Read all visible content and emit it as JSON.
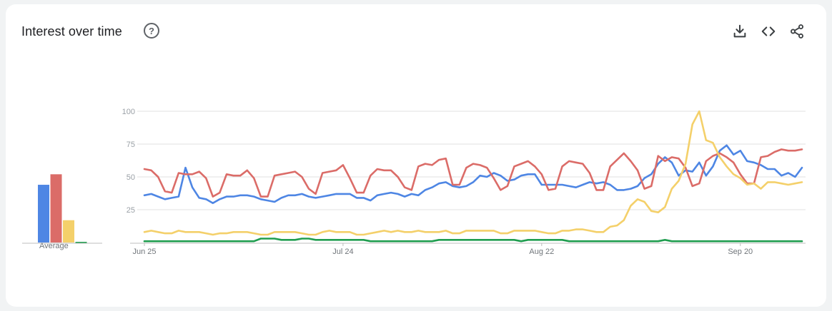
{
  "header": {
    "title": "Interest over time",
    "help_icon": "?"
  },
  "toolbar": {
    "icons": [
      "download-icon",
      "embed-code-icon",
      "share-icon"
    ]
  },
  "average": {
    "label": "Average"
  },
  "colors": {
    "blue": "#4e86e4",
    "red": "#db6c68",
    "yellow": "#f4d06a",
    "green": "#1f9d4f",
    "grid": "#e0e0e0",
    "axis": "#bdbdbd"
  },
  "chart_data": {
    "type": "line",
    "ylim": [
      0,
      100
    ],
    "y_ticks": [
      100,
      75,
      50,
      25
    ],
    "x_tick_labels": [
      "Jun 25",
      "Jul 24",
      "Aug 22",
      "Sep 20"
    ],
    "x_tick_index": [
      0,
      29,
      58,
      87
    ],
    "legend": "none",
    "grid": true,
    "average_bars": [
      44,
      52,
      17,
      0.5
    ],
    "series": [
      {
        "color": "#4e86e4",
        "values": [
          36,
          37,
          35,
          33,
          34,
          35,
          57,
          42,
          34,
          33,
          30,
          33,
          35,
          35,
          36,
          36,
          35,
          33,
          32,
          31,
          34,
          36,
          36,
          37,
          35,
          34,
          35,
          36,
          37,
          37,
          37,
          34,
          34,
          32,
          36,
          37,
          38,
          37,
          35,
          37,
          36,
          40,
          42,
          45,
          46,
          43,
          42,
          43,
          46,
          51,
          50,
          53,
          51,
          47,
          48,
          51,
          52,
          52,
          44,
          44,
          44,
          44,
          43,
          42,
          44,
          46,
          45,
          46,
          44,
          40,
          40,
          41,
          43,
          49,
          52,
          60,
          65,
          61,
          51,
          55,
          54,
          61,
          51,
          58,
          70,
          74,
          67,
          70,
          62,
          61,
          59,
          56,
          56,
          51,
          53,
          50,
          57
        ]
      },
      {
        "color": "#db6c68",
        "values": [
          56,
          55,
          50,
          39,
          38,
          53,
          52,
          52,
          54,
          49,
          35,
          38,
          52,
          51,
          51,
          55,
          49,
          35,
          35,
          51,
          52,
          53,
          54,
          50,
          41,
          37,
          53,
          54,
          55,
          59,
          49,
          38,
          38,
          51,
          56,
          55,
          55,
          50,
          42,
          40,
          58,
          60,
          59,
          63,
          64,
          44,
          44,
          57,
          60,
          59,
          57,
          49,
          40,
          43,
          58,
          60,
          62,
          58,
          52,
          40,
          41,
          58,
          62,
          61,
          60,
          53,
          40,
          40,
          58,
          63,
          68,
          62,
          55,
          41,
          43,
          66,
          62,
          65,
          64,
          57,
          43,
          45,
          62,
          66,
          68,
          65,
          61,
          52,
          45,
          45,
          65,
          66,
          69,
          71,
          70,
          70,
          71
        ]
      },
      {
        "color": "#f4d06a",
        "values": [
          8,
          9,
          8,
          7,
          7,
          9,
          8,
          8,
          8,
          7,
          6,
          7,
          7,
          8,
          8,
          8,
          7,
          6,
          6,
          8,
          8,
          8,
          8,
          7,
          6,
          6,
          8,
          9,
          8,
          8,
          8,
          6,
          6,
          7,
          8,
          9,
          8,
          9,
          8,
          8,
          9,
          8,
          8,
          8,
          9,
          7,
          7,
          9,
          9,
          9,
          9,
          9,
          7,
          7,
          9,
          9,
          9,
          9,
          8,
          7,
          7,
          9,
          9,
          10,
          10,
          9,
          8,
          8,
          12,
          13,
          17,
          28,
          33,
          31,
          24,
          23,
          27,
          41,
          47,
          60,
          90,
          100,
          78,
          76,
          65,
          58,
          52,
          49,
          44,
          45,
          41,
          46,
          46,
          45,
          44,
          45,
          46
        ]
      },
      {
        "color": "#1f9d4f",
        "values": [
          1,
          1,
          1,
          1,
          1,
          1,
          1,
          1,
          1,
          1,
          1,
          1,
          1,
          1,
          1,
          1,
          1,
          3,
          3,
          3,
          2,
          2,
          2,
          3,
          3,
          2,
          2,
          2,
          2,
          2,
          2,
          2,
          2,
          1,
          1,
          1,
          1,
          1,
          1,
          1,
          1,
          1,
          1,
          2,
          2,
          2,
          2,
          2,
          2,
          2,
          2,
          2,
          2,
          2,
          2,
          1,
          2,
          2,
          2,
          2,
          2,
          2,
          1,
          1,
          1,
          1,
          1,
          1,
          1,
          1,
          1,
          1,
          1,
          1,
          1,
          1,
          2,
          1,
          1,
          1,
          1,
          1,
          1,
          1,
          1,
          1,
          1,
          1,
          1,
          1,
          1,
          1,
          1,
          1,
          1,
          1,
          1
        ]
      }
    ]
  }
}
